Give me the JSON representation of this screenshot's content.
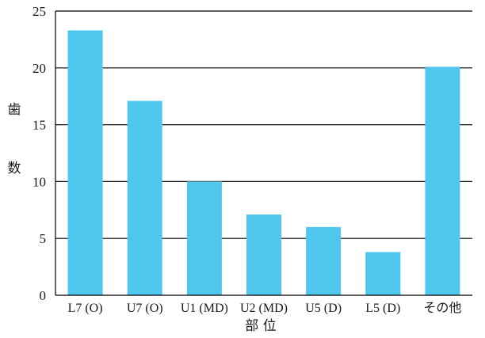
{
  "chart_data": {
    "type": "bar",
    "categories": [
      "L7 (O)",
      "U7 (O)",
      "U1 (MD)",
      "U2 (MD)",
      "U5 (D)",
      "L5 (D)",
      "その他"
    ],
    "values": [
      23.3,
      17.1,
      10.0,
      7.1,
      6.0,
      3.8,
      20.1
    ],
    "xlabel": "部 位",
    "ylabel_chars": [
      "歯",
      "数"
    ],
    "ylim": [
      0,
      25
    ],
    "yticks": [
      "0",
      "5",
      "10",
      "15",
      "20",
      "25"
    ],
    "grid": true,
    "bar_color": "#4fc6ee",
    "grid_color": "#000000"
  }
}
